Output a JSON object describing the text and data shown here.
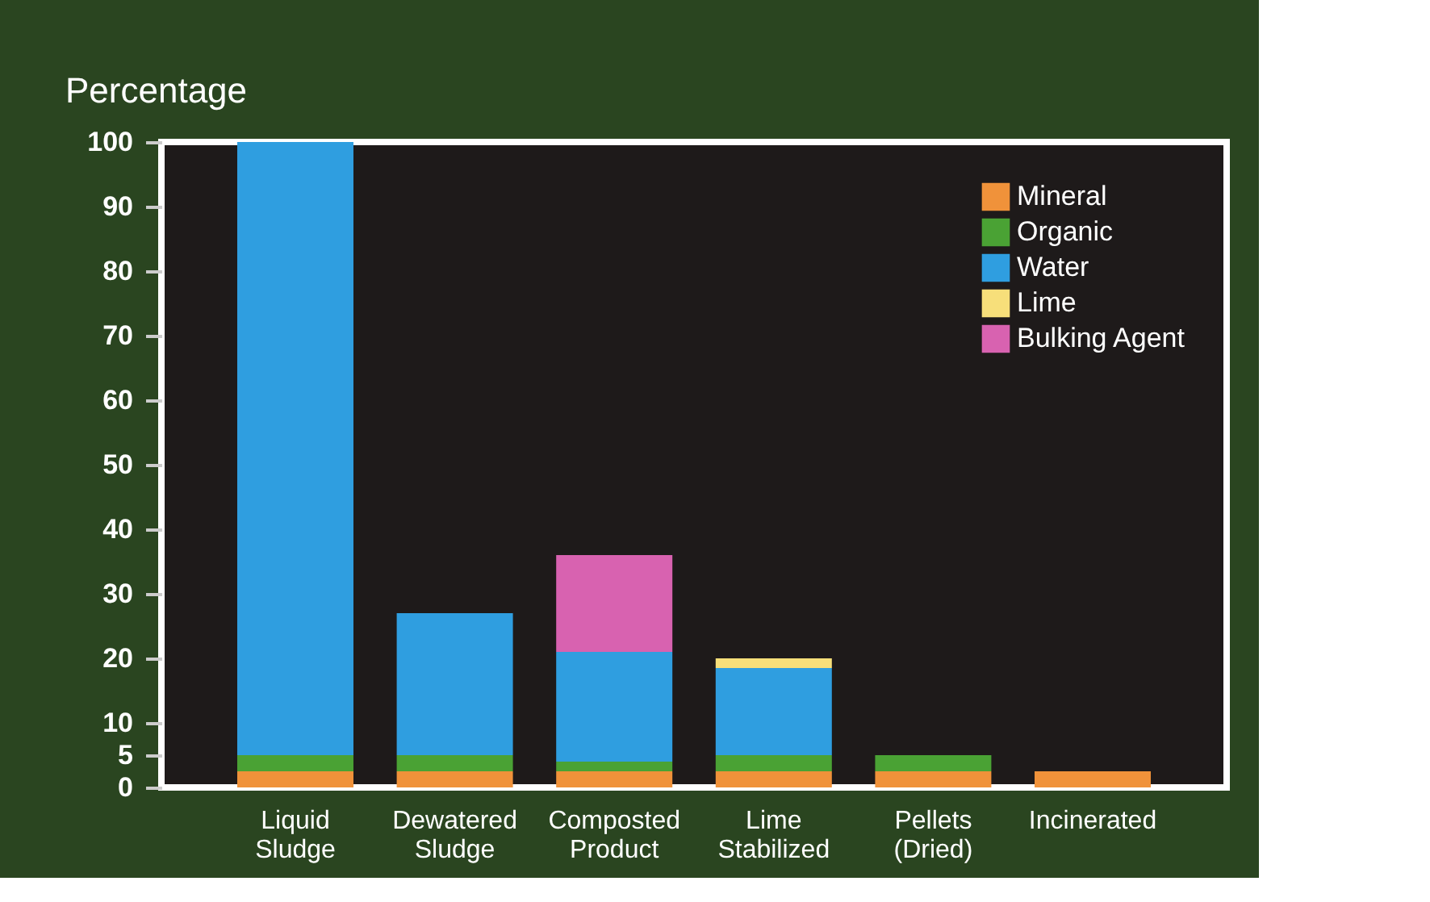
{
  "chart_data": {
    "type": "bar",
    "stacked": true,
    "ylabel": "Percentage",
    "categories": [
      "Liquid Sludge",
      "Dewatered Sludge",
      "Composted Product",
      "Lime Stabilized",
      "Pellets (Dried)",
      "Incinerated"
    ],
    "series": [
      {
        "name": "Mineral",
        "color": "#f0923a",
        "values": [
          2.5,
          2.5,
          2.5,
          2.5,
          2.5,
          2.5
        ]
      },
      {
        "name": "Organic",
        "color": "#4aa234",
        "values": [
          2.5,
          2.5,
          1.5,
          2.5,
          2.5,
          null
        ]
      },
      {
        "name": "Water",
        "color": "#2f9ee0",
        "values": [
          95,
          22,
          17,
          13.5,
          null,
          null
        ]
      },
      {
        "name": "Lime",
        "color": "#f7df7a",
        "values": [
          null,
          null,
          null,
          1.5,
          null,
          null
        ]
      },
      {
        "name": "Bulking Agent",
        "color": "#d862b0",
        "values": [
          null,
          null,
          15,
          null,
          null,
          null
        ]
      }
    ],
    "ylim": [
      0,
      100
    ],
    "yticks": [
      0,
      5,
      10,
      20,
      30,
      40,
      50,
      60,
      70,
      80,
      90,
      100
    ],
    "grid": false,
    "legend": "top right"
  }
}
